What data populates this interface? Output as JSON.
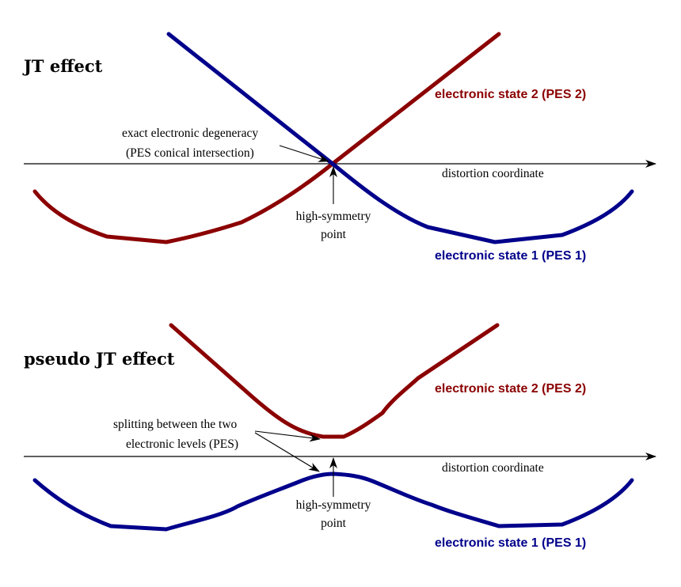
{
  "colors": {
    "state1": "#00008b",
    "state2": "#8b0000",
    "axis": "#000000"
  },
  "jt": {
    "title": "JT effect",
    "state2_label": "electronic state 2 (PES 2)",
    "state1_label": "electronic state 1 (PES 1)",
    "degeneracy_line1": "exact electronic degeneracy",
    "degeneracy_line2": "(PES conical intersection)",
    "axis_label": "distortion coordinate",
    "sym_line1": "high-symmetry",
    "sym_line2": "point"
  },
  "pjt": {
    "title": "pseudo JT effect",
    "state2_label": "electronic state 2 (PES 2)",
    "state1_label": "electronic state 1 (PES 1)",
    "split_line1": "splitting between the two",
    "split_line2": "electronic levels (PES)",
    "axis_label": "distortion coordinate",
    "sym_line1": "high-symmetry",
    "sym_line2": "point"
  }
}
